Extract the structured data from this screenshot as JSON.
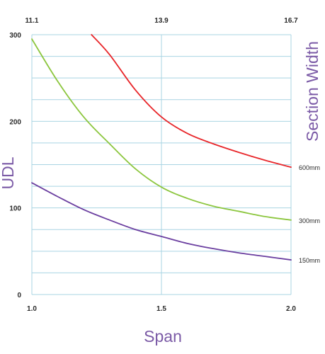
{
  "chart_data": {
    "type": "line",
    "xlabel": "Span",
    "ylabel": "UDL",
    "y2label": "Section Width",
    "xlim": [
      1.0,
      2.0
    ],
    "ylim": [
      0,
      300
    ],
    "x_ticks": [
      "1.0",
      "1.5",
      "2.0"
    ],
    "x_top_ticks": [
      "11.1",
      "13.9",
      "16.7"
    ],
    "y_ticks": [
      "0",
      "100",
      "200",
      "300"
    ],
    "grid": true,
    "legend": "right",
    "series": [
      {
        "name": "600mm",
        "color": "#e8262a",
        "x": [
          1.23,
          1.3,
          1.4,
          1.5,
          1.6,
          1.7,
          1.8,
          1.9,
          2.0
        ],
        "y": [
          300,
          277,
          236,
          205,
          186,
          174,
          164,
          155,
          147
        ]
      },
      {
        "name": "300mm",
        "color": "#8cc63e",
        "x": [
          1.0,
          1.1,
          1.2,
          1.3,
          1.4,
          1.5,
          1.6,
          1.7,
          1.8,
          1.9,
          2.0
        ],
        "y": [
          295,
          246,
          205,
          174,
          145,
          124,
          111,
          102,
          96,
          90,
          86
        ]
      },
      {
        "name": "150mm",
        "color": "#6b3fa0",
        "x": [
          1.0,
          1.1,
          1.2,
          1.3,
          1.4,
          1.5,
          1.6,
          1.7,
          1.8,
          1.9,
          2.0
        ],
        "y": [
          129,
          113,
          98,
          86,
          75,
          67,
          59,
          53,
          48,
          44,
          40
        ]
      }
    ]
  }
}
